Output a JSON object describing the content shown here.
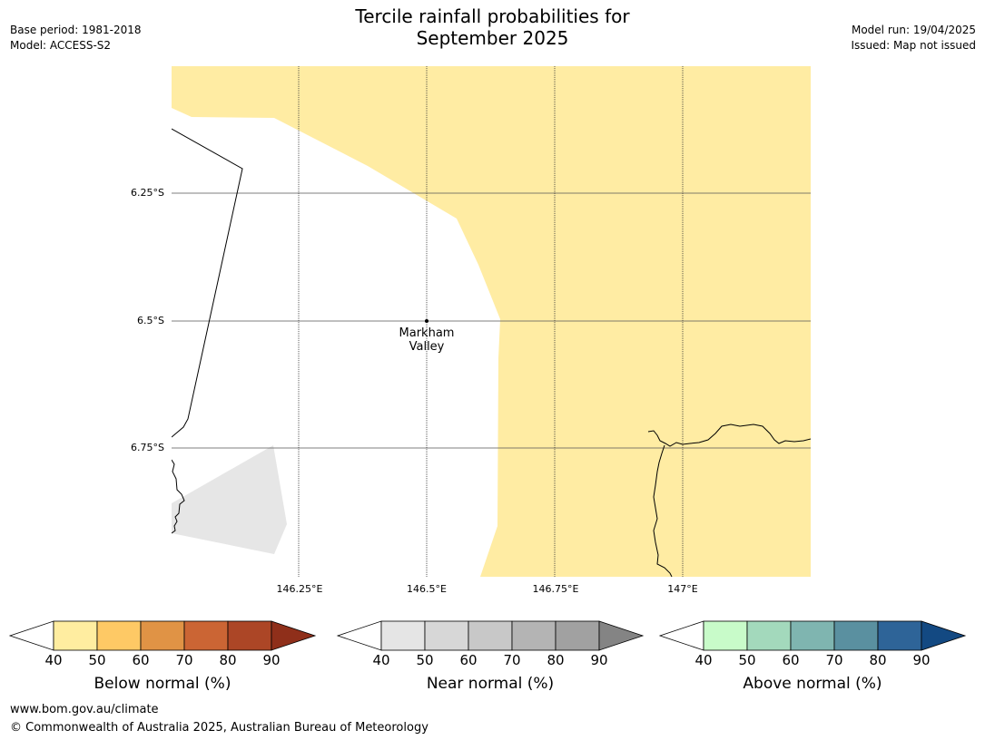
{
  "title": {
    "line1": "Tercile rainfall probabilities for",
    "line2": "September 2025"
  },
  "meta_left": {
    "base_period": "Base period: 1981-2018",
    "model": "Model: ACCESS-S2"
  },
  "meta_right": {
    "model_run": "Model run: 19/04/2025",
    "issued": "Issued: Map not issued"
  },
  "map": {
    "lat_labels": [
      "6.25°S",
      "6.5°S",
      "6.75°S"
    ],
    "lon_labels": [
      "146.25°E",
      "146.5°E",
      "146.75°E",
      "147°E"
    ],
    "place": {
      "line1": "Markham",
      "line2": "Valley"
    },
    "colors": {
      "below_40_50": "#ffeca3",
      "near_40_50": "#e6e6e6"
    }
  },
  "colorbars": [
    {
      "title": "Below normal (%)",
      "ticks": [
        "40",
        "50",
        "60",
        "70",
        "80",
        "90"
      ],
      "colors": [
        "#ffeda0",
        "#fec965",
        "#e09345",
        "#cb6534",
        "#ac4626",
        "#8f2f1a"
      ]
    },
    {
      "title": "Near normal (%)",
      "ticks": [
        "40",
        "50",
        "60",
        "70",
        "80",
        "90"
      ],
      "colors": [
        "#e5e5e5",
        "#d7d7d7",
        "#c8c8c8",
        "#b4b4b4",
        "#a1a1a1",
        "#848484"
      ]
    },
    {
      "title": "Above normal (%)",
      "ticks": [
        "40",
        "50",
        "60",
        "70",
        "80",
        "90"
      ],
      "colors": [
        "#c8fbc9",
        "#a3d9bc",
        "#7fb5b0",
        "#5a90a0",
        "#2e6498",
        "#134982"
      ]
    }
  ],
  "footer": {
    "url": "www.bom.gov.au/climate",
    "copyright": "© Commonwealth of Australia 2025, Australian Bureau of Meteorology"
  }
}
